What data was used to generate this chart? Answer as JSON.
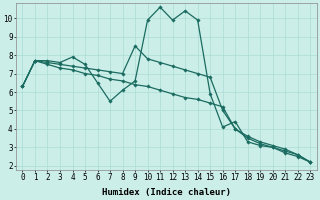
{
  "xlabel": "Humidex (Indice chaleur)",
  "bg_color": "#cceee8",
  "line_color": "#1a6b60",
  "grid_color": "#aaddd5",
  "xlim": [
    -0.5,
    23.5
  ],
  "ylim": [
    1.8,
    10.8
  ],
  "xticks": [
    0,
    1,
    2,
    3,
    4,
    5,
    6,
    7,
    8,
    9,
    10,
    11,
    12,
    13,
    14,
    15,
    16,
    17,
    18,
    19,
    20,
    21,
    22,
    23
  ],
  "yticks": [
    2,
    3,
    4,
    5,
    6,
    7,
    8,
    9,
    10
  ],
  "line1_x": [
    0,
    1,
    2,
    3,
    4,
    5,
    6,
    7,
    8,
    9,
    10,
    11,
    12,
    13,
    14,
    15,
    16,
    17,
    18,
    19,
    20,
    21,
    22,
    23
  ],
  "line1_y": [
    6.3,
    7.7,
    7.7,
    7.6,
    7.9,
    7.5,
    6.5,
    5.5,
    6.1,
    6.6,
    9.9,
    10.6,
    9.9,
    10.4,
    9.9,
    5.9,
    4.1,
    4.4,
    3.3,
    3.1,
    3.0,
    2.7,
    2.5,
    2.2
  ],
  "line2_x": [
    0,
    1,
    2,
    3,
    4,
    5,
    6,
    7,
    8,
    9,
    10,
    11,
    12,
    13,
    14,
    15,
    16,
    17,
    18,
    19,
    20,
    21,
    22,
    23
  ],
  "line2_y": [
    6.3,
    7.7,
    7.6,
    7.5,
    7.4,
    7.3,
    7.2,
    7.1,
    7.0,
    8.5,
    7.8,
    7.6,
    7.4,
    7.2,
    7.0,
    6.8,
    5.0,
    4.0,
    3.6,
    3.3,
    3.1,
    2.9,
    2.6,
    2.2
  ],
  "line3_x": [
    0,
    1,
    2,
    3,
    4,
    5,
    6,
    7,
    8,
    9,
    10,
    11,
    12,
    13,
    14,
    15,
    16,
    17,
    18,
    19,
    20,
    21,
    22,
    23
  ],
  "line3_y": [
    6.3,
    7.7,
    7.5,
    7.3,
    7.2,
    7.0,
    6.9,
    6.7,
    6.6,
    6.4,
    6.3,
    6.1,
    5.9,
    5.7,
    5.6,
    5.4,
    5.2,
    4.0,
    3.5,
    3.2,
    3.0,
    2.8,
    2.6,
    2.2
  ],
  "marker": "D",
  "markersize": 1.8,
  "linewidth": 0.9,
  "label_fontsize": 6.5,
  "tick_fontsize": 5.5
}
